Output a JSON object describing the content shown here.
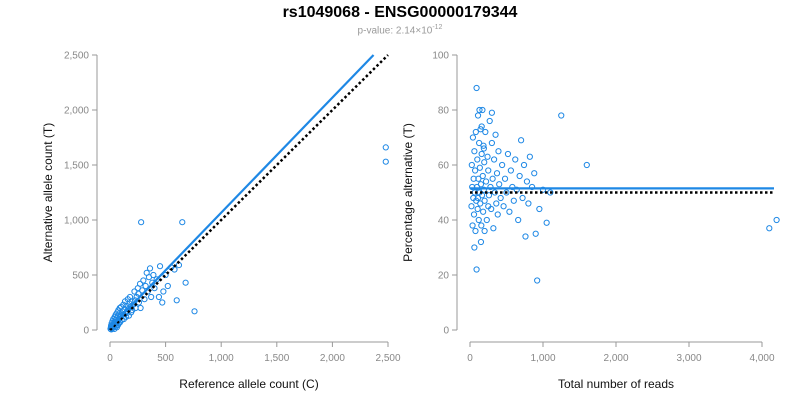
{
  "title": "rs1049068 - ENSG00000179344",
  "subtitle": {
    "prefix": "p-value: 2.14×10",
    "exponent": "-12"
  },
  "colors": {
    "accent": "#1e88e5",
    "point": "#1e88e5",
    "axis": "#999999",
    "reference_line": "#000000"
  },
  "chart_data": [
    {
      "type": "scatter",
      "xlabel": "Reference allele count (C)",
      "ylabel": "Alternative allele count (T)",
      "xlim": [
        0,
        2500
      ],
      "ylim": [
        0,
        2500
      ],
      "x_ticks": [
        0,
        500,
        1000,
        1500,
        2000,
        2500
      ],
      "y_ticks": [
        0,
        500,
        1000,
        1500,
        2000,
        2500
      ],
      "x_tick_labels": [
        "0",
        "500",
        "1,000",
        "1,500",
        "2,000",
        "2,500"
      ],
      "y_tick_labels": [
        "0",
        "500",
        "1,000",
        "1,500",
        "2,000",
        "2,500"
      ],
      "grid": false,
      "fit_line": {
        "style": "solid",
        "points": [
          [
            0,
            20
          ],
          [
            2370,
            2500
          ]
        ]
      },
      "expected_line": {
        "style": "dotted",
        "points": [
          [
            0,
            0
          ],
          [
            2500,
            2500
          ]
        ]
      },
      "points": [
        [
          5,
          10
        ],
        [
          8,
          25
        ],
        [
          10,
          40
        ],
        [
          12,
          5
        ],
        [
          15,
          60
        ],
        [
          18,
          30
        ],
        [
          20,
          15
        ],
        [
          22,
          80
        ],
        [
          25,
          45
        ],
        [
          28,
          20
        ],
        [
          30,
          100
        ],
        [
          32,
          55
        ],
        [
          35,
          35
        ],
        [
          38,
          70
        ],
        [
          40,
          10
        ],
        [
          42,
          120
        ],
        [
          45,
          65
        ],
        [
          48,
          90
        ],
        [
          50,
          30
        ],
        [
          52,
          140
        ],
        [
          55,
          75
        ],
        [
          58,
          50
        ],
        [
          60,
          110
        ],
        [
          62,
          25
        ],
        [
          65,
          160
        ],
        [
          68,
          85
        ],
        [
          70,
          130
        ],
        [
          72,
          45
        ],
        [
          75,
          180
        ],
        [
          78,
          95
        ],
        [
          80,
          60
        ],
        [
          85,
          150
        ],
        [
          88,
          200
        ],
        [
          90,
          70
        ],
        [
          95,
          120
        ],
        [
          100,
          210
        ],
        [
          105,
          90
        ],
        [
          110,
          170
        ],
        [
          115,
          140
        ],
        [
          120,
          230
        ],
        [
          125,
          100
        ],
        [
          130,
          190
        ],
        [
          135,
          260
        ],
        [
          140,
          150
        ],
        [
          145,
          120
        ],
        [
          150,
          220
        ],
        [
          155,
          170
        ],
        [
          160,
          280
        ],
        [
          165,
          190
        ],
        [
          170,
          130
        ],
        [
          175,
          240
        ],
        [
          180,
          300
        ],
        [
          185,
          210
        ],
        [
          190,
          160
        ],
        [
          195,
          260
        ],
        [
          200,
          180
        ],
        [
          210,
          230
        ],
        [
          220,
          350
        ],
        [
          225,
          270
        ],
        [
          230,
          200
        ],
        [
          240,
          300
        ],
        [
          250,
          380
        ],
        [
          255,
          330
        ],
        [
          260,
          250
        ],
        [
          270,
          420
        ],
        [
          275,
          200
        ],
        [
          280,
          980
        ],
        [
          290,
          360
        ],
        [
          300,
          450
        ],
        [
          310,
          280
        ],
        [
          320,
          400
        ],
        [
          330,
          520
        ],
        [
          340,
          350
        ],
        [
          350,
          480
        ],
        [
          360,
          560
        ],
        [
          370,
          300
        ],
        [
          380,
          430
        ],
        [
          390,
          500
        ],
        [
          400,
          380
        ],
        [
          420,
          460
        ],
        [
          440,
          300
        ],
        [
          450,
          580
        ],
        [
          470,
          250
        ],
        [
          480,
          350
        ],
        [
          500,
          500
        ],
        [
          520,
          400
        ],
        [
          550,
          570
        ],
        [
          580,
          550
        ],
        [
          600,
          270
        ],
        [
          620,
          590
        ],
        [
          650,
          980
        ],
        [
          680,
          430
        ],
        [
          760,
          170
        ],
        [
          2480,
          1660
        ],
        [
          2480,
          1530
        ]
      ]
    },
    {
      "type": "scatter",
      "xlabel": "Total number of reads",
      "ylabel": "Percentage alternative (T)",
      "xlim": [
        0,
        4000
      ],
      "ylim": [
        0,
        100
      ],
      "x_ticks": [
        0,
        1000,
        2000,
        3000,
        4000
      ],
      "y_ticks": [
        0,
        20,
        40,
        60,
        80,
        100
      ],
      "x_tick_labels": [
        "0",
        "1,000",
        "2,000",
        "3,000",
        "4,000"
      ],
      "y_tick_labels": [
        "0",
        "20",
        "40",
        "60",
        "80",
        "100"
      ],
      "grid": false,
      "fit_line": {
        "style": "solid",
        "y": 51.5
      },
      "expected_line": {
        "style": "dotted",
        "y": 50
      },
      "points": [
        [
          20,
          45
        ],
        [
          25,
          60
        ],
        [
          30,
          52
        ],
        [
          35,
          38
        ],
        [
          40,
          70
        ],
        [
          45,
          48
        ],
        [
          50,
          55
        ],
        [
          55,
          42
        ],
        [
          60,
          65
        ],
        [
          65,
          50
        ],
        [
          70,
          58
        ],
        [
          75,
          36
        ],
        [
          80,
          72
        ],
        [
          85,
          47
        ],
        [
          90,
          88
        ],
        [
          95,
          52
        ],
        [
          100,
          62
        ],
        [
          105,
          44
        ],
        [
          110,
          78
        ],
        [
          115,
          55
        ],
        [
          120,
          40
        ],
        [
          125,
          68
        ],
        [
          130,
          50
        ],
        [
          135,
          59
        ],
        [
          140,
          46
        ],
        [
          145,
          73
        ],
        [
          150,
          53
        ],
        [
          155,
          38
        ],
        [
          160,
          64
        ],
        [
          165,
          49
        ],
        [
          170,
          80
        ],
        [
          175,
          56
        ],
        [
          180,
          43
        ],
        [
          185,
          67
        ],
        [
          190,
          51
        ],
        [
          195,
          61
        ],
        [
          200,
          47
        ],
        [
          210,
          72
        ],
        [
          220,
          54
        ],
        [
          230,
          40
        ],
        [
          240,
          63
        ],
        [
          250,
          58
        ],
        [
          260,
          49
        ],
        [
          270,
          76
        ],
        [
          280,
          52
        ],
        [
          290,
          44
        ],
        [
          300,
          68
        ],
        [
          310,
          55
        ],
        [
          320,
          37
        ],
        [
          330,
          62
        ],
        [
          340,
          50
        ],
        [
          350,
          71
        ],
        [
          360,
          46
        ],
        [
          370,
          57
        ],
        [
          380,
          42
        ],
        [
          390,
          65
        ],
        [
          400,
          53
        ],
        [
          420,
          48
        ],
        [
          440,
          60
        ],
        [
          460,
          45
        ],
        [
          480,
          55
        ],
        [
          500,
          50
        ],
        [
          520,
          64
        ],
        [
          540,
          43
        ],
        [
          560,
          58
        ],
        [
          580,
          52
        ],
        [
          600,
          47
        ],
        [
          620,
          62
        ],
        [
          640,
          51
        ],
        [
          660,
          40
        ],
        [
          680,
          56
        ],
        [
          700,
          69
        ],
        [
          720,
          48
        ],
        [
          740,
          60
        ],
        [
          760,
          34
        ],
        [
          780,
          54
        ],
        [
          800,
          46
        ],
        [
          820,
          63
        ],
        [
          850,
          52
        ],
        [
          880,
          57
        ],
        [
          900,
          35
        ],
        [
          920,
          18
        ],
        [
          950,
          44
        ],
        [
          1000,
          51
        ],
        [
          1050,
          39
        ],
        [
          1100,
          50
        ],
        [
          1250,
          78
        ],
        [
          1600,
          60
        ],
        [
          4100,
          37
        ],
        [
          4200,
          40
        ],
        [
          60,
          30
        ],
        [
          90,
          22
        ],
        [
          130,
          80
        ],
        [
          160,
          74
        ],
        [
          200,
          36
        ],
        [
          250,
          45
        ],
        [
          300,
          79
        ],
        [
          150,
          32
        ],
        [
          190,
          66
        ],
        [
          110,
          48
        ]
      ]
    }
  ]
}
